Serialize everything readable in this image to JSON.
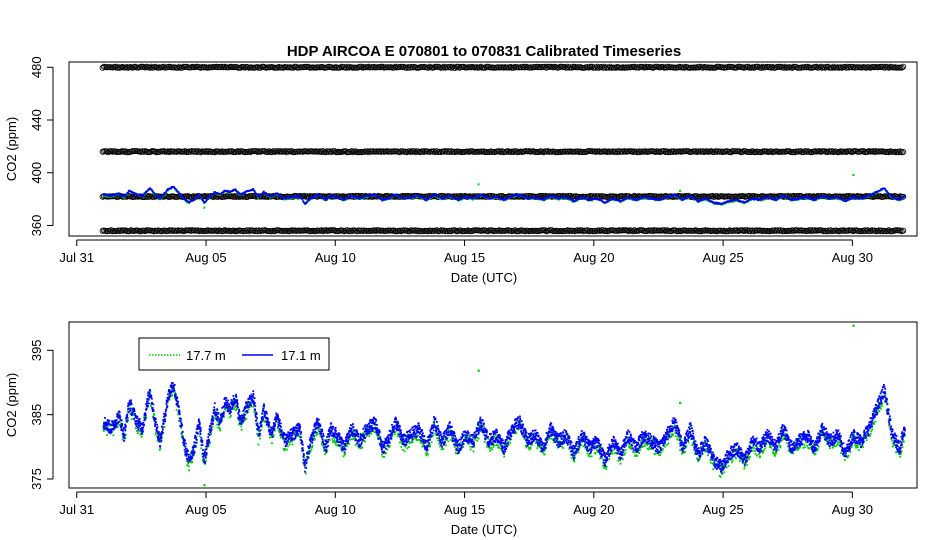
{
  "chart_data": [
    {
      "type": "scatter",
      "title": "HDP   AIRCOA  E   070801  to  070831   Calibrated Timeseries",
      "xlabel": "Date (UTC)",
      "ylabel": "CO2 (ppm)",
      "x_ticks": [
        "Jul 31",
        "Aug 05",
        "Aug 10",
        "Aug 15",
        "Aug 20",
        "Aug 25",
        "Aug 30"
      ],
      "x_tick_values": [
        0,
        5,
        10,
        15,
        20,
        25,
        30
      ],
      "xlim": [
        -0.3,
        32.5
      ],
      "y_ticks": [
        360,
        400,
        440,
        480
      ],
      "ylim": [
        352,
        484
      ],
      "reference_bands": [
        {
          "name": "calibration",
          "color": "#000000",
          "values": [
            356,
            382,
            416,
            480
          ]
        }
      ],
      "series": [
        {
          "color": "#00cc00",
          "style": "points"
        },
        {
          "color": "#0000ff",
          "style": "points"
        }
      ]
    },
    {
      "type": "line",
      "title": "",
      "xlabel": "Date (UTC)",
      "ylabel": "CO2 (ppm)",
      "x_ticks": [
        "Jul 31",
        "Aug 05",
        "Aug 10",
        "Aug 15",
        "Aug 20",
        "Aug 25",
        "Aug 30"
      ],
      "x_tick_values": [
        0,
        5,
        10,
        15,
        20,
        25,
        30
      ],
      "xlim": [
        -0.3,
        32.5
      ],
      "y_ticks": [
        375,
        385,
        395
      ],
      "ylim": [
        373.6,
        399.4
      ],
      "legend": {
        "placement": "top-left",
        "entries": [
          "17.7 m",
          "17.1 m"
        ]
      },
      "series": [
        {
          "name": "17.7 m",
          "color": "#00cc00",
          "style": "dotted",
          "outliers": [
            [
              4.9,
              374.2
            ],
            [
              15.5,
              392
            ],
            [
              23.3,
              387
            ],
            [
              30.0,
              399.0
            ]
          ]
        },
        {
          "name": "17.1 m",
          "color": "#0000ff",
          "style": "line",
          "x": [
            1.0,
            1.3,
            1.6,
            1.8,
            2.0,
            2.3,
            2.5,
            2.8,
            3.0,
            3.2,
            3.5,
            3.7,
            3.9,
            4.1,
            4.3,
            4.5,
            4.7,
            4.9,
            5.0,
            5.3,
            5.5,
            5.7,
            5.9,
            6.1,
            6.3,
            6.5,
            6.8,
            7.0,
            7.2,
            7.5,
            7.7,
            8.0,
            8.3,
            8.6,
            8.8,
            9.0,
            9.3,
            9.6,
            9.8,
            10.0,
            10.3,
            10.6,
            10.9,
            11.2,
            11.5,
            11.8,
            12.0,
            12.3,
            12.6,
            12.9,
            13.2,
            13.5,
            13.8,
            14.1,
            14.4,
            14.7,
            15.0,
            15.3,
            15.6,
            15.9,
            16.2,
            16.5,
            16.8,
            17.1,
            17.4,
            17.7,
            18.0,
            18.3,
            18.6,
            18.9,
            19.2,
            19.5,
            19.8,
            20.1,
            20.4,
            20.7,
            21.0,
            21.3,
            21.6,
            21.9,
            22.2,
            22.5,
            22.8,
            23.1,
            23.4,
            23.7,
            24.0,
            24.3,
            24.6,
            24.9,
            25.2,
            25.5,
            25.8,
            26.1,
            26.4,
            26.7,
            27.0,
            27.3,
            27.6,
            27.9,
            28.2,
            28.5,
            28.8,
            29.1,
            29.4,
            29.7,
            30.0,
            30.3,
            30.6,
            30.9,
            31.2,
            31.5,
            31.8,
            32.0
          ],
          "values": [
            384,
            383,
            385,
            382,
            387,
            384,
            383,
            389,
            384,
            381,
            388,
            390,
            386,
            381,
            378,
            380,
            384,
            378,
            380,
            386,
            384,
            387,
            386,
            388,
            384,
            386,
            388,
            382,
            386,
            382,
            385,
            381,
            382,
            383,
            377,
            381,
            384,
            380,
            383,
            382,
            380,
            383,
            381,
            383,
            384,
            380,
            381,
            384,
            381,
            382,
            383,
            380,
            384,
            381,
            383,
            380,
            382,
            381,
            384,
            381,
            382,
            380,
            383,
            384,
            381,
            382,
            380,
            383,
            381,
            382,
            379,
            382,
            380,
            381,
            378,
            381,
            379,
            382,
            380,
            382,
            381,
            380,
            382,
            384,
            380,
            383,
            379,
            381,
            378,
            377,
            379,
            380,
            378,
            381,
            380,
            382,
            380,
            383,
            380,
            381,
            382,
            380,
            383,
            381,
            382,
            379,
            382,
            381,
            383,
            386,
            389,
            382,
            380,
            383
          ]
        }
      ]
    }
  ]
}
